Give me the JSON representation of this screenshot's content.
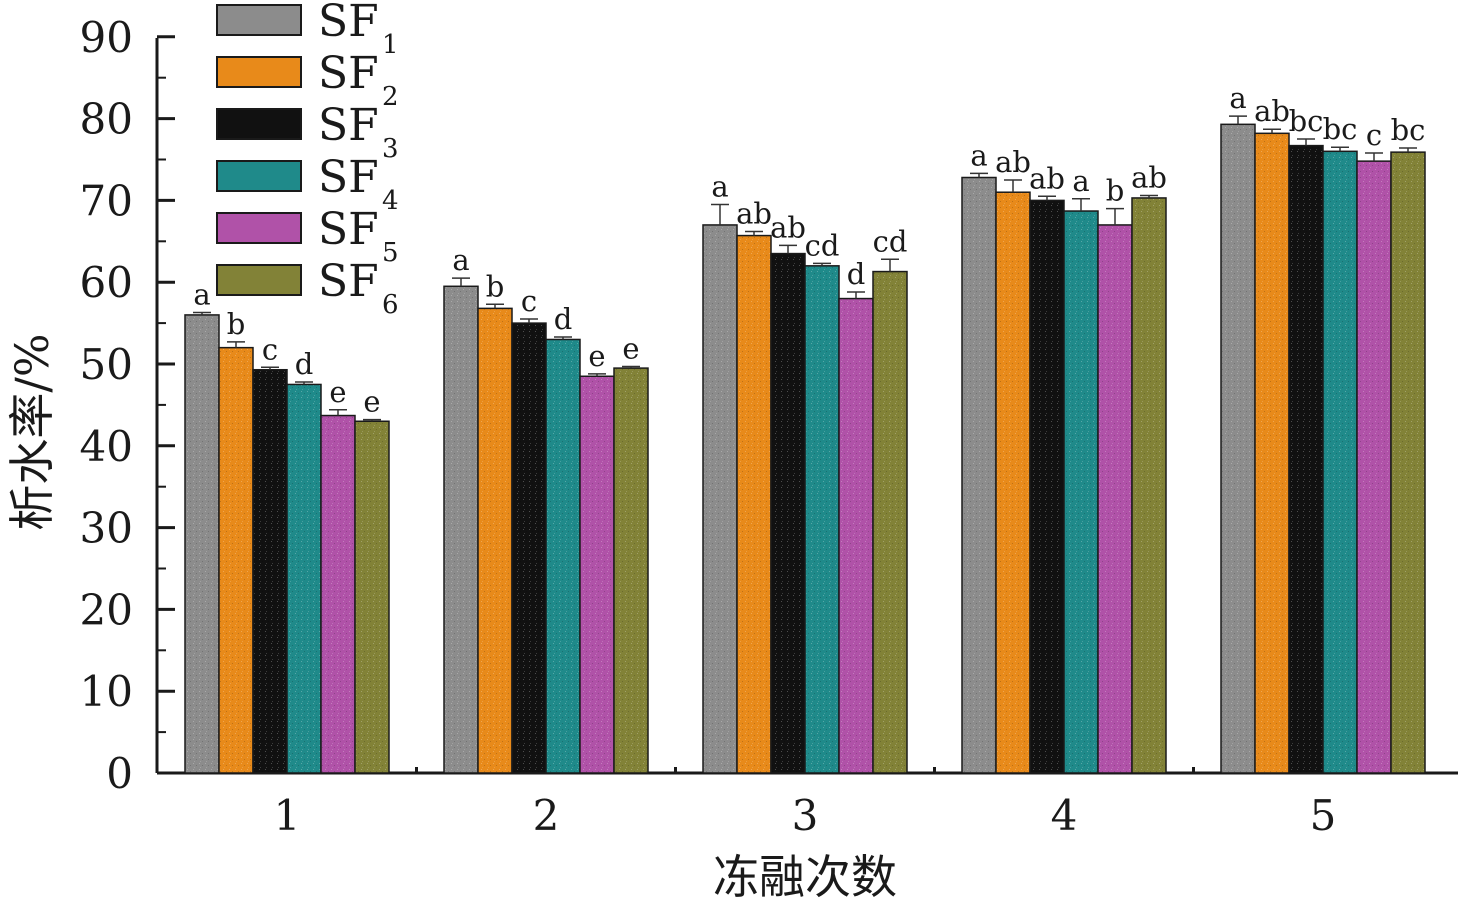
{
  "chart_data": {
    "type": "bar",
    "title": "",
    "xlabel": "冻融次数",
    "ylabel": "析水率/%",
    "ylim": [
      0,
      90
    ],
    "yticks": [
      "0",
      "10",
      "20",
      "30",
      "40",
      "50",
      "60",
      "70",
      "80",
      "90"
    ],
    "categories": [
      "1",
      "2",
      "3",
      "4",
      "5"
    ],
    "legend_position": "top-left",
    "series": [
      {
        "name": "SF",
        "sub": "1",
        "color": "#8c8c8c",
        "values": [
          56.0,
          59.5,
          67.0,
          72.8,
          79.3
        ],
        "errors": [
          0.3,
          1.0,
          2.5,
          0.5,
          1.0
        ],
        "labels": [
          "a",
          "a",
          "a",
          "a",
          "a"
        ]
      },
      {
        "name": "SF",
        "sub": "2",
        "color": "#e88a1a",
        "values": [
          52.0,
          56.8,
          65.7,
          71.0,
          78.2
        ],
        "errors": [
          0.7,
          0.5,
          0.5,
          1.5,
          0.5
        ],
        "labels": [
          "b",
          "b",
          "ab",
          "ab",
          "ab"
        ]
      },
      {
        "name": "SF",
        "sub": "3",
        "color": "#111111",
        "values": [
          49.3,
          55.0,
          63.5,
          70.0,
          76.7
        ],
        "errors": [
          0.3,
          0.5,
          1.0,
          0.5,
          0.8
        ],
        "labels": [
          "c",
          "c",
          "ab",
          "ab",
          "bc"
        ]
      },
      {
        "name": "SF",
        "sub": "4",
        "color": "#1f8a8a",
        "values": [
          47.5,
          53.0,
          62.0,
          68.7,
          76.0
        ],
        "errors": [
          0.3,
          0.3,
          0.3,
          1.5,
          0.5
        ],
        "labels": [
          "d",
          "d",
          "cd",
          "a",
          "bc"
        ]
      },
      {
        "name": "SF",
        "sub": "5",
        "color": "#b052a8",
        "values": [
          43.7,
          48.5,
          58.0,
          67.0,
          74.8
        ],
        "errors": [
          0.7,
          0.3,
          0.8,
          2.0,
          1.0
        ],
        "labels": [
          "e",
          "e",
          "d",
          "b",
          "c"
        ]
      },
      {
        "name": "SF",
        "sub": "6",
        "color": "#828237",
        "values": [
          43.0,
          49.5,
          61.3,
          70.3,
          75.9
        ],
        "errors": [
          0.2,
          0.2,
          1.5,
          0.3,
          0.5
        ],
        "labels": [
          "e",
          "e",
          "cd",
          "ab",
          "bc"
        ]
      }
    ]
  }
}
